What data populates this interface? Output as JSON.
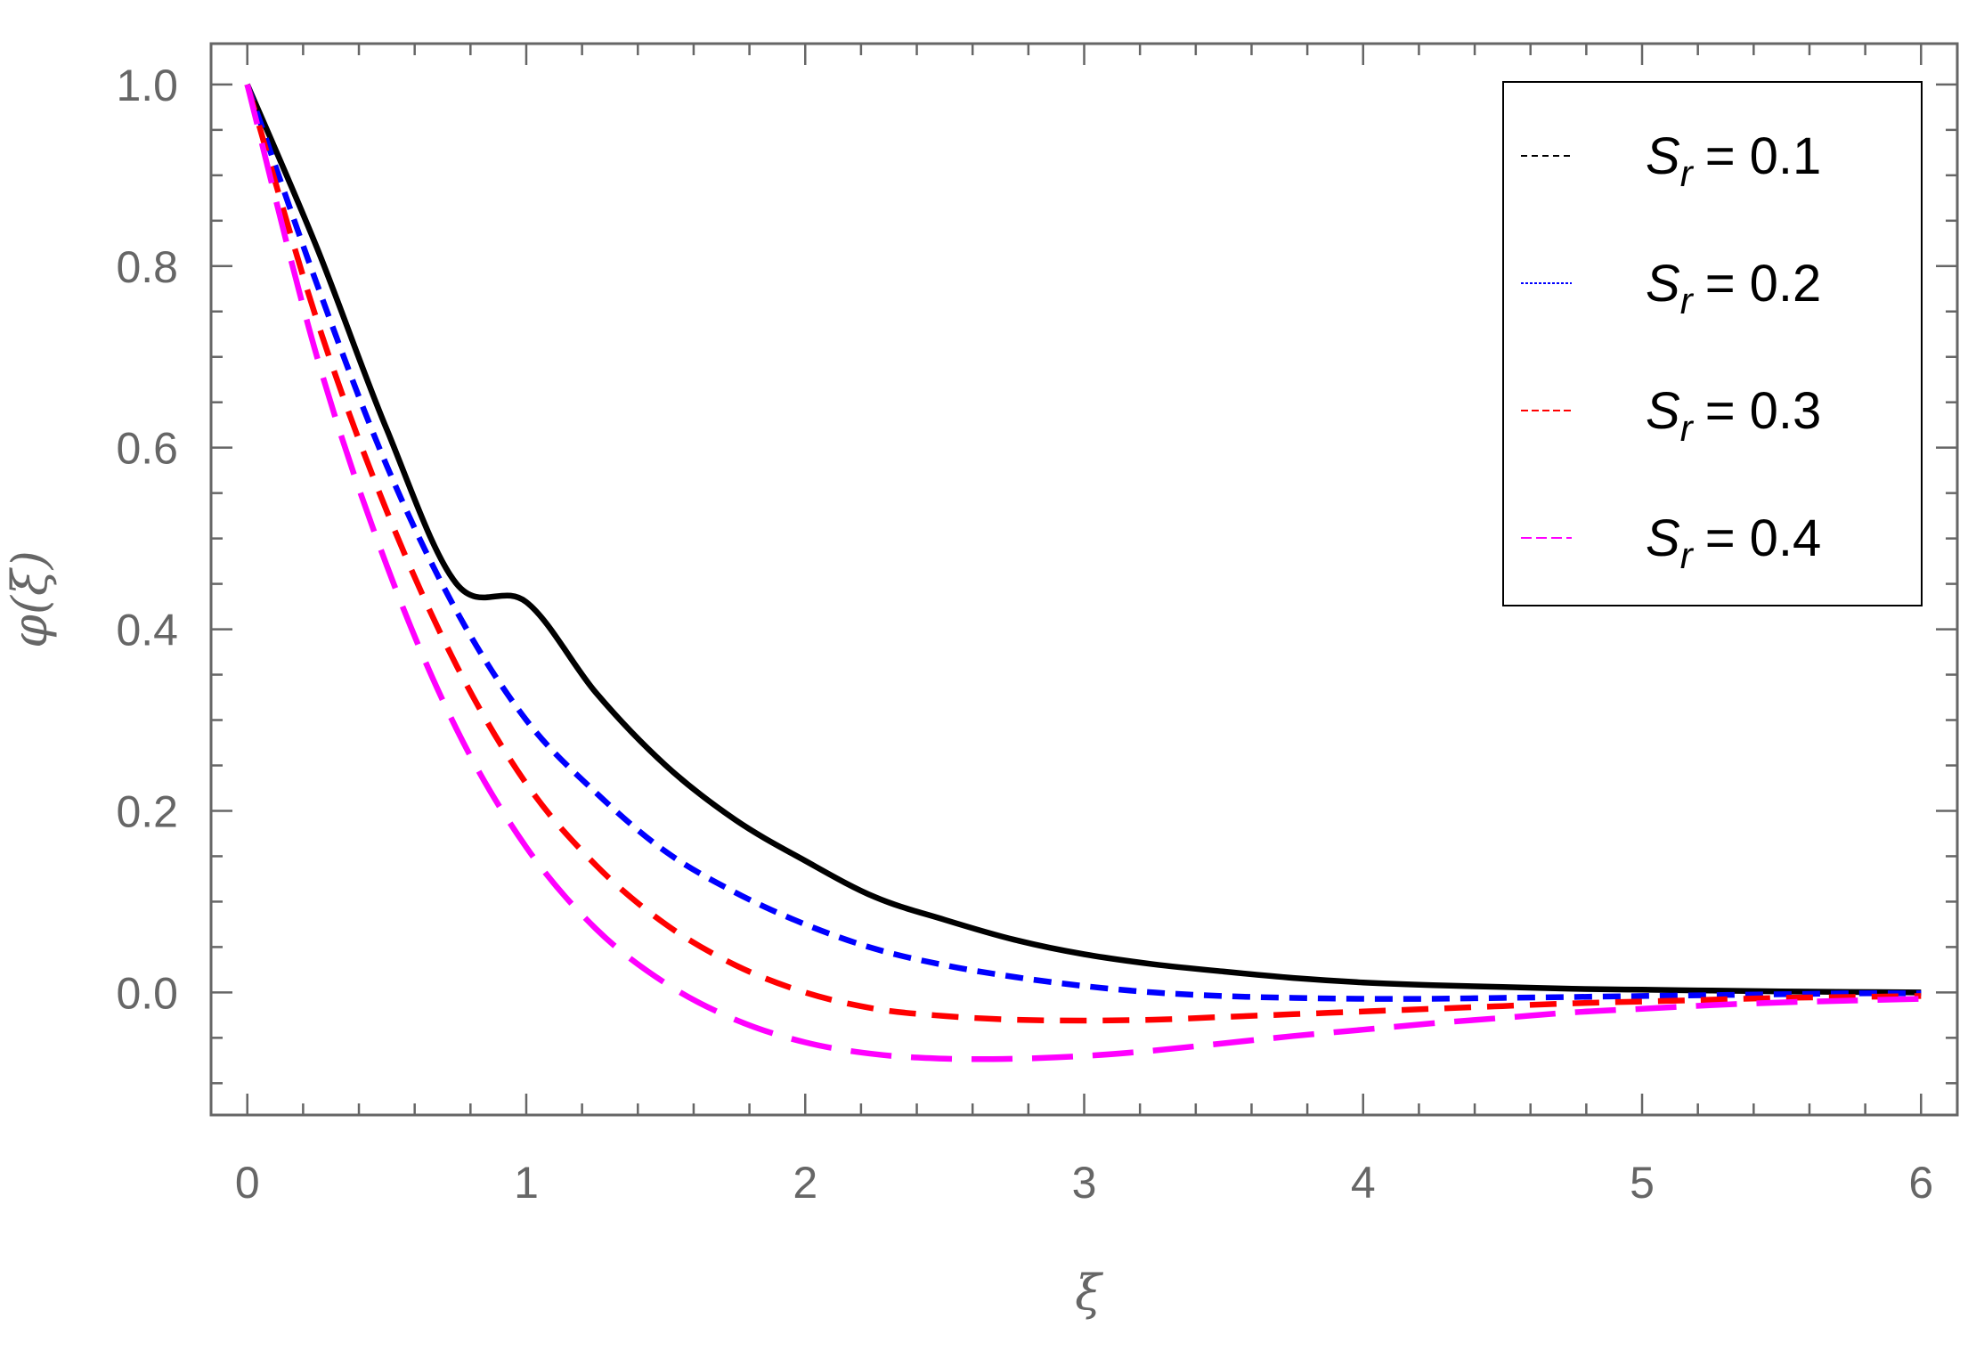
{
  "chart_data": {
    "type": "line",
    "xlabel": "ξ",
    "ylabel": "φ(ξ)",
    "xlim": [
      -0.13,
      6.13
    ],
    "ylim": [
      -0.135,
      1.045
    ],
    "xticks": [
      0,
      1,
      2,
      3,
      4,
      5,
      6
    ],
    "xtick_labels": [
      "0",
      "1",
      "2",
      "3",
      "4",
      "5",
      "6"
    ],
    "yticks": [
      0.0,
      0.2,
      0.4,
      0.6,
      0.8,
      1.0
    ],
    "ytick_labels": [
      "0.0",
      "0.2",
      "0.4",
      "0.6",
      "0.8",
      "1.0"
    ],
    "grid": false,
    "legend_position": "top-right",
    "x": [
      0,
      0.25,
      0.5,
      0.75,
      1.0,
      1.25,
      1.5,
      1.75,
      2.0,
      2.25,
      2.5,
      2.75,
      3.0,
      3.25,
      3.5,
      3.75,
      4.0,
      4.25,
      4.5,
      4.75,
      5.0,
      5.25,
      5.5,
      5.75,
      6.0
    ],
    "series": [
      {
        "name": "0.1",
        "color": "#000000",
        "dash": "solid",
        "values": [
          1.0,
          0.82,
          0.62,
          0.45,
          0.43,
          0.33,
          0.25,
          0.19,
          0.145,
          0.105,
          0.08,
          0.058,
          0.042,
          0.031,
          0.023,
          0.016,
          0.011,
          0.008,
          0.006,
          0.004,
          0.003,
          0.002,
          0.001,
          0.0005,
          0.0
        ]
      },
      {
        "name": "0.2",
        "color": "#0000ff",
        "dash": "short",
        "values": [
          1.0,
          0.78,
          0.58,
          0.42,
          0.3,
          0.22,
          0.155,
          0.11,
          0.075,
          0.048,
          0.03,
          0.017,
          0.007,
          0.0,
          -0.004,
          -0.006,
          -0.007,
          -0.007,
          -0.006,
          -0.005,
          -0.004,
          -0.003,
          -0.002,
          -0.001,
          -0.001
        ]
      },
      {
        "name": "0.3",
        "color": "#ff0000",
        "dash": "medium",
        "values": [
          1.0,
          0.74,
          0.53,
          0.36,
          0.23,
          0.14,
          0.075,
          0.03,
          0.0,
          -0.018,
          -0.026,
          -0.03,
          -0.031,
          -0.03,
          -0.027,
          -0.024,
          -0.021,
          -0.018,
          -0.015,
          -0.012,
          -0.01,
          -0.008,
          -0.006,
          -0.005,
          -0.004
        ]
      },
      {
        "name": "0.4",
        "color": "#ff00ff",
        "dash": "long",
        "values": [
          1.0,
          0.7,
          0.47,
          0.29,
          0.16,
          0.07,
          0.01,
          -0.03,
          -0.055,
          -0.068,
          -0.073,
          -0.073,
          -0.07,
          -0.064,
          -0.056,
          -0.048,
          -0.041,
          -0.034,
          -0.028,
          -0.022,
          -0.018,
          -0.014,
          -0.011,
          -0.009,
          -0.007
        ]
      }
    ],
    "legend": {
      "symbol": "S",
      "subscript": "r",
      "separator": "="
    }
  }
}
